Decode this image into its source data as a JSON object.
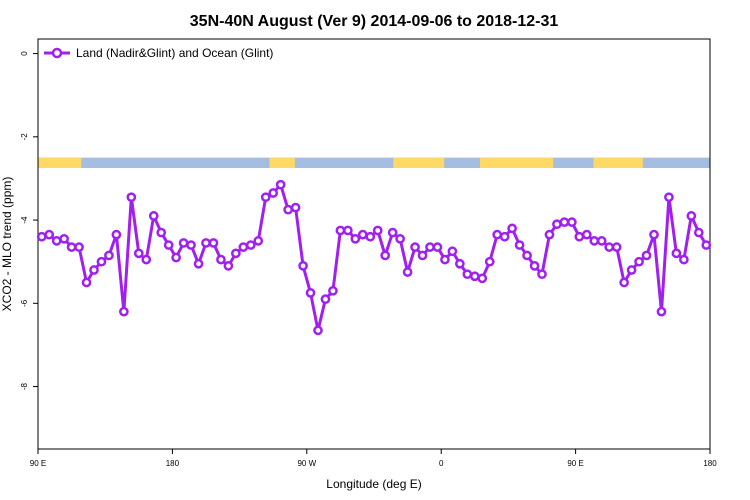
{
  "chart_data": {
    "type": "line",
    "title": "35N-40N August (Ver 9)   2014-09-06 to 2018-12-31",
    "xlabel": "Longitude (deg E)",
    "ylabel": "XCO2 - MLO trend (ppm)",
    "xlim": [
      90,
      540
    ],
    "ylim": [
      -9.5,
      0.35
    ],
    "y_reversed": false,
    "x_ticks": [
      {
        "value": 90,
        "label": "90 E"
      },
      {
        "value": 180,
        "label": "180"
      },
      {
        "value": 270,
        "label": "90 W"
      },
      {
        "value": 360,
        "label": "0"
      },
      {
        "value": 450,
        "label": "90 E"
      },
      {
        "value": 540,
        "label": "180"
      }
    ],
    "y_ticks": [
      {
        "value": 0,
        "label": "0"
      },
      {
        "value": -2,
        "label": "-2"
      },
      {
        "value": -4,
        "label": "-4"
      },
      {
        "value": -6,
        "label": "-6"
      },
      {
        "value": -8,
        "label": "-8"
      }
    ],
    "grid": false,
    "legend_position": "top-left",
    "series": [
      {
        "name": "Land (Nadir&Glint) and Ocean (Glint)",
        "color": "#a020f0",
        "x": [
          92.5,
          97.5,
          102.5,
          107.5,
          112.5,
          117.5,
          122.5,
          127.5,
          132.5,
          137.5,
          142.5,
          147.5,
          152.5,
          157.5,
          162.5,
          167.5,
          172.5,
          177.5,
          182.5,
          187.5,
          192.5,
          197.5,
          202.5,
          207.5,
          212.5,
          217.5,
          222.5,
          227.5,
          232.5,
          237.5,
          242.5,
          247.5,
          252.5,
          257.5,
          262.5,
          267.5,
          272.5,
          277.5,
          282.5,
          287.5,
          292.5,
          297.5,
          302.5,
          307.5,
          312.5,
          317.5,
          322.5,
          327.5,
          332.5,
          337.5,
          342.5,
          347.5,
          352.5,
          357.5,
          362.5,
          367.5,
          372.5,
          377.5,
          382.5,
          387.5,
          392.5,
          397.5,
          402.5,
          407.5,
          412.5,
          417.5,
          422.5,
          427.5,
          432.5,
          437.5,
          442.5,
          447.5,
          452.5,
          457.5,
          462.5,
          467.5,
          472.5,
          477.5,
          482.5,
          487.5,
          492.5,
          497.5,
          502.5,
          507.5,
          512.5,
          517.5,
          522.5,
          527.5,
          532.5,
          537.5
        ],
        "y": [
          -4.4,
          -4.35,
          -4.5,
          -4.45,
          -4.65,
          -4.65,
          -5.5,
          -5.2,
          -5.0,
          -4.85,
          -4.35,
          -6.2,
          -3.45,
          -4.8,
          -4.95,
          -3.9,
          -4.3,
          -4.6,
          -4.9,
          -4.55,
          -4.6,
          -5.05,
          -4.55,
          -4.55,
          -4.95,
          -5.1,
          -4.8,
          -4.65,
          -4.6,
          -4.5,
          -3.45,
          -3.35,
          -3.15,
          -3.75,
          -3.7,
          -5.1,
          -5.75,
          -6.65,
          -5.9,
          -5.7,
          -4.25,
          -4.25,
          -4.45,
          -4.35,
          -4.4,
          -4.25,
          -4.85,
          -4.3,
          -4.45,
          -5.25,
          -4.65,
          -4.85,
          -4.65,
          -4.65,
          -4.95,
          -4.75,
          -5.05,
          -5.3,
          -5.35,
          -5.4,
          -5.0,
          -4.35,
          -4.4,
          -4.2,
          -4.6,
          -4.85,
          -5.1,
          -5.3,
          -4.35,
          -4.1,
          -4.05,
          -4.05,
          -4.4,
          -4.35,
          -4.5,
          -4.5,
          -4.65,
          -4.65,
          -5.5,
          -5.2,
          -5.0,
          -4.85,
          -4.35,
          -6.2,
          -3.45,
          -4.8,
          -4.95,
          -3.9,
          -4.3,
          -4.6
        ]
      }
    ],
    "surface_band": {
      "y_range": [
        -2.5,
        -2.75
      ],
      "land_color": "#ffd966",
      "ocean_color": "#a4bde0",
      "land_spans": [
        [
          90,
          119
        ],
        [
          245,
          262
        ],
        [
          328,
          362
        ],
        [
          386,
          435
        ],
        [
          462,
          495
        ]
      ]
    }
  }
}
